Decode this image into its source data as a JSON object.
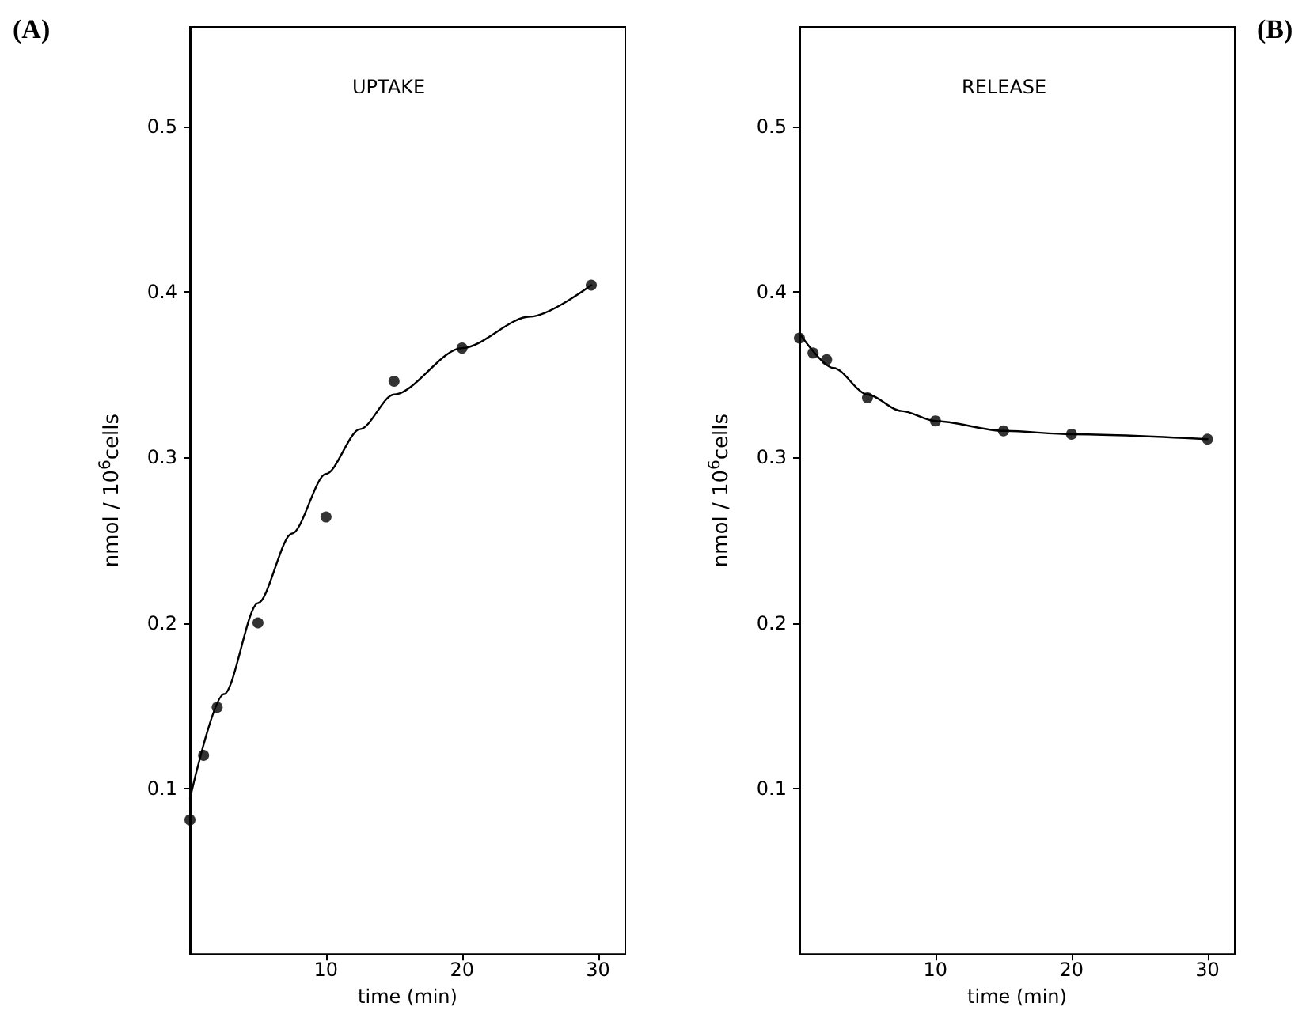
{
  "chart_data": [
    {
      "type": "scatter",
      "title": "UPTAKE",
      "annotations": [
        "(A)"
      ],
      "xlabel": "time (min)",
      "ylabel": "nmol / 10$^{6}$cells",
      "xlim": [
        0,
        32
      ],
      "ylim": [
        0,
        0.56
      ],
      "xticks": [
        10,
        20,
        30
      ],
      "yticks": [
        0.1,
        0.2,
        0.3,
        0.4,
        0.5
      ],
      "grid": false,
      "series": [
        {
          "marker": "circle",
          "color": "#000000",
          "x": [
            0,
            1,
            2,
            5,
            10,
            15,
            20,
            29.5
          ],
          "values": [
            0.081,
            0.12,
            0.149,
            0.2,
            0.264,
            0.346,
            0.366,
            0.404
          ]
        },
        {
          "type": "line",
          "marker": "none",
          "color": "#000000",
          "x": [
            0,
            2.5,
            5,
            7.5,
            10,
            12.5,
            15,
            20,
            25,
            29.5
          ],
          "values": [
            0.094,
            0.157,
            0.212,
            0.254,
            0.29,
            0.317,
            0.338,
            0.366,
            0.385,
            0.404
          ]
        }
      ]
    },
    {
      "type": "scatter",
      "title": "RELEASE",
      "annotations": [
        "(B)"
      ],
      "xlabel": "time (min)",
      "ylabel": "nmol / 10$^{6}$cells",
      "xlim": [
        0,
        32
      ],
      "ylim": [
        0,
        0.56
      ],
      "xticks": [
        10,
        20,
        30
      ],
      "yticks": [
        0.1,
        0.2,
        0.3,
        0.4,
        0.5
      ],
      "grid": false,
      "series": [
        {
          "marker": "circle",
          "color": "#000000",
          "x": [
            0,
            1,
            2,
            5,
            10,
            15,
            20,
            30
          ],
          "values": [
            0.372,
            0.363,
            0.359,
            0.336,
            0.322,
            0.316,
            0.314,
            0.311
          ]
        },
        {
          "type": "line",
          "marker": "none",
          "color": "#000000",
          "x": [
            0,
            2.5,
            5,
            7.5,
            10,
            15,
            20,
            30
          ],
          "values": [
            0.375,
            0.354,
            0.338,
            0.328,
            0.322,
            0.316,
            0.314,
            0.311
          ]
        }
      ]
    }
  ]
}
